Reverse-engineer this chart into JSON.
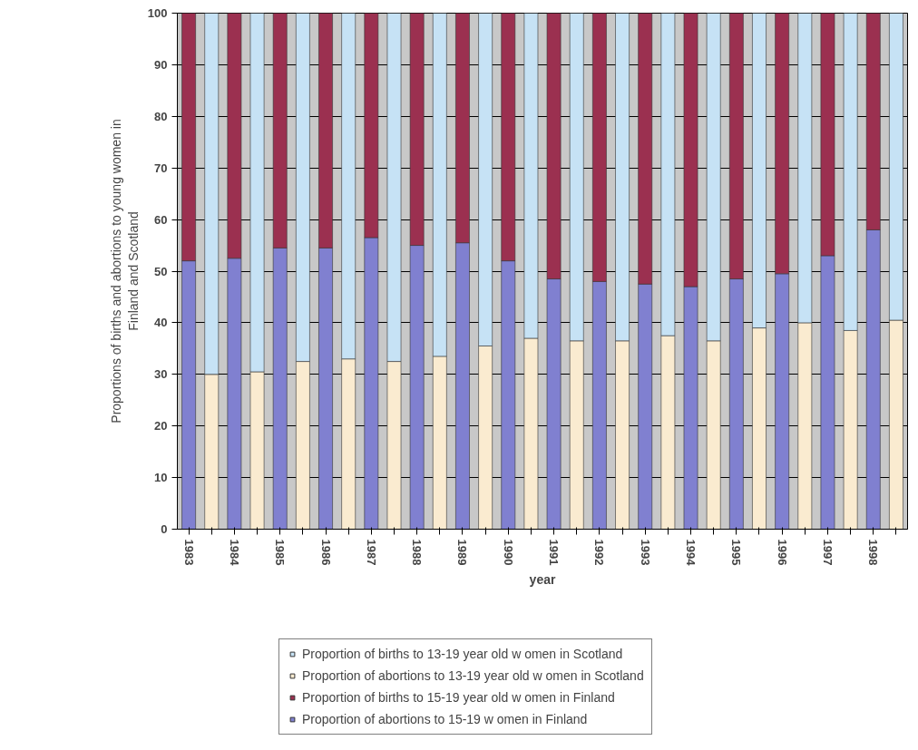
{
  "chart_data": {
    "type": "bar",
    "stacked": true,
    "xlabel": "year",
    "ylabel": "Proportions of births and abortions to young women in Finland and Scotland",
    "categories": [
      "1983",
      null,
      "1984",
      null,
      "1985",
      null,
      "1986",
      null,
      "1987",
      null,
      "1988",
      null,
      "1989",
      null,
      "1990",
      null,
      "1991",
      null,
      "1992",
      null,
      "1993",
      null,
      "1994",
      null,
      "1995",
      null,
      "1996",
      null,
      "1997",
      null,
      "1998",
      null
    ],
    "series": [
      {
        "name": "Proportion of abortions to 15-19 w omen in Finland",
        "color": "#8080d0",
        "values": [
          52,
          null,
          52.5,
          null,
          54.5,
          null,
          54.5,
          null,
          56.5,
          null,
          55,
          null,
          55.5,
          null,
          52,
          null,
          48.5,
          null,
          48,
          null,
          47.5,
          null,
          47,
          null,
          48.5,
          null,
          49.5,
          null,
          53,
          null,
          58,
          null
        ]
      },
      {
        "name": "Proportion of births to 15-19 year old w omen in Finland",
        "color": "#9b3050",
        "values": [
          48,
          null,
          47.5,
          null,
          45.5,
          null,
          45.5,
          null,
          43.5,
          null,
          45,
          null,
          44.5,
          null,
          48,
          null,
          51.5,
          null,
          52,
          null,
          52.5,
          null,
          53,
          null,
          51.5,
          null,
          50.5,
          null,
          47,
          null,
          42,
          null
        ]
      },
      {
        "name": "Proportion of abortions to 13-19 year old w omen in Scotland",
        "color": "#faebd0",
        "values": [
          null,
          30,
          null,
          30.5,
          null,
          32.5,
          null,
          33,
          null,
          32.5,
          null,
          33.5,
          null,
          35.5,
          null,
          37,
          null,
          36.5,
          null,
          36.5,
          null,
          37.5,
          null,
          36.5,
          null,
          39,
          null,
          40,
          null,
          38.5,
          null,
          40.5
        ]
      },
      {
        "name": "Proportion of births to 13-19 year old w omen in Scotland",
        "color": "#c6e2f5",
        "values": [
          null,
          70,
          null,
          69.5,
          null,
          67.5,
          null,
          67,
          null,
          67.5,
          null,
          66.5,
          null,
          64.5,
          null,
          63,
          null,
          63.5,
          null,
          63.5,
          null,
          62.5,
          null,
          63.5,
          null,
          61,
          null,
          60,
          null,
          61.5,
          null,
          59.5
        ]
      }
    ],
    "ylim": [
      0,
      100
    ],
    "yticks": [
      0,
      10,
      20,
      30,
      40,
      50,
      60,
      70,
      80,
      90,
      100
    ],
    "grid": "y",
    "legend": "bottom"
  }
}
